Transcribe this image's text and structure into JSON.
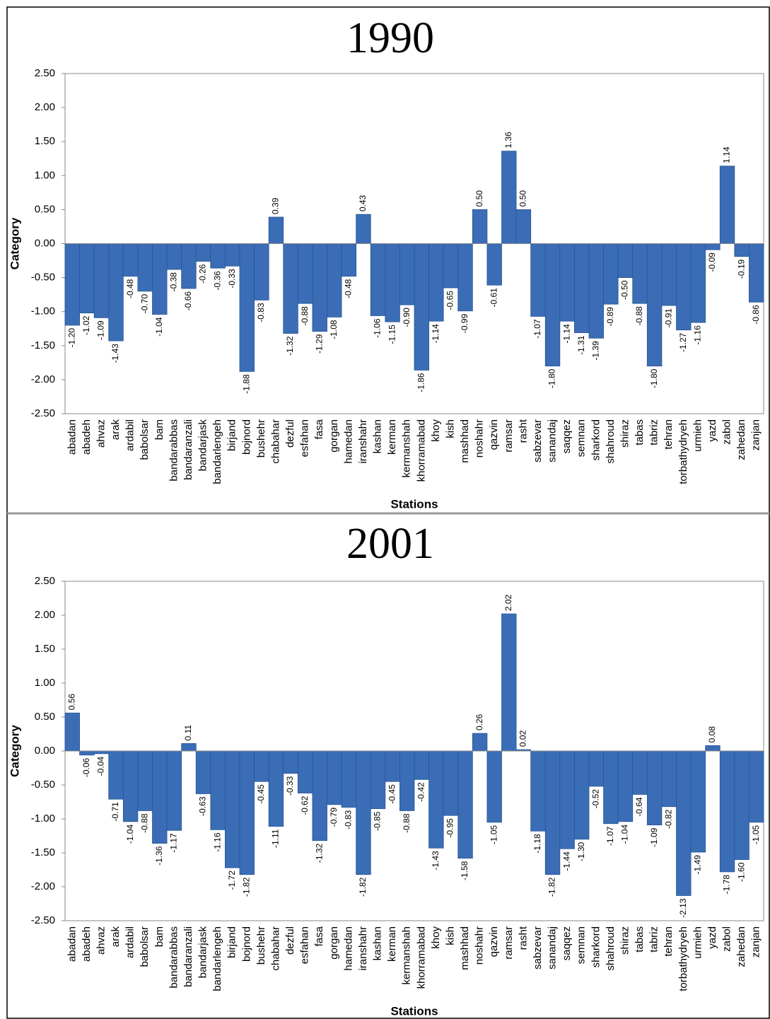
{
  "chart_data": [
    {
      "type": "bar",
      "title": "1990",
      "x_label": "Stations",
      "y_label": "Category",
      "color": "#3a6db5",
      "categories": [
        "abadan",
        "abadeh",
        "ahvaz",
        "arak",
        "ardabil",
        "babolsar",
        "bam",
        "bandarabbas",
        "bandaranzali",
        "bandarjask",
        "bandarlengeh",
        "birjand",
        "bojnord",
        "bushehr",
        "chabahar",
        "dezful",
        "esfahan",
        "fasa",
        "gorgan",
        "hamedan",
        "iranshahr",
        "kashan",
        "kerman",
        "kermanshah",
        "khorramabad",
        "khoy",
        "kish",
        "mashhad",
        "noshahr",
        "qazvin",
        "ramsar",
        "rasht",
        "sabzevar",
        "sanandaj",
        "saqqez",
        "semnan",
        "sharkord",
        "shahroud",
        "shiraz",
        "tabas",
        "tabriz",
        "tehran",
        "torbathydryeh",
        "urmieh",
        "yazd",
        "zabol",
        "zahedan",
        "zanjan"
      ],
      "values": [
        -1.2,
        -1.02,
        -1.09,
        -1.43,
        -0.48,
        -0.7,
        -1.04,
        -0.38,
        -0.66,
        -0.26,
        -0.36,
        -0.33,
        -1.88,
        -0.83,
        0.39,
        -1.32,
        -0.88,
        -1.29,
        -1.08,
        -0.48,
        0.43,
        -1.06,
        -1.15,
        -0.9,
        -1.86,
        -1.14,
        -0.65,
        -0.99,
        0.5,
        -0.61,
        1.36,
        0.5,
        -1.07,
        -1.8,
        -1.14,
        -1.31,
        -1.39,
        -0.89,
        -0.5,
        -0.88,
        -1.8,
        -0.91,
        -1.27,
        -1.16,
        -0.09,
        1.14,
        -0.19,
        -0.86
      ],
      "value_labels": [
        "-1.20",
        "-1.02",
        "-1.09",
        "-1.43",
        "-0.48",
        "-0.70",
        "-1.04",
        "-0.38",
        "-0.66",
        "-0.26",
        "-0.36",
        "-0.33",
        "-1.88",
        "-0.83",
        "0.39",
        "-1.32",
        "-0.88",
        "-1.29",
        "-1.08",
        "-0.48",
        "0.43",
        "-1.06",
        "-1.15",
        "-0.90",
        "-1.86",
        "-1.14",
        "-0.65",
        "-0.99",
        "0.50",
        "-0.61",
        "1.36",
        "0.50",
        "-1.07",
        "-1.80",
        "-1.14",
        "-1.31",
        "-1.39",
        "-0.89",
        "-0.50",
        "-0.88",
        "-1.80",
        "-0.91",
        "-1.27",
        "-1.16",
        "-0.09",
        "1.14",
        "-0.19",
        "-0.86"
      ],
      "ylim": [
        -2.5,
        2.5
      ],
      "yticks": [
        {
          "value": -2.5,
          "label": "-2.50"
        },
        {
          "value": -2,
          "label": "-2.00"
        },
        {
          "value": -1.5,
          "label": "-1.50"
        },
        {
          "value": -1,
          "label": "-1.00"
        },
        {
          "value": -0.5,
          "label": "-0.50"
        },
        {
          "value": 0,
          "label": "0.00"
        },
        {
          "value": 0.5,
          "label": "0.50"
        },
        {
          "value": 1,
          "label": "1.00"
        },
        {
          "value": 1.5,
          "label": "1.50"
        },
        {
          "value": 2,
          "label": "2.00"
        },
        {
          "value": 2.5,
          "label": "2.50"
        }
      ]
    },
    {
      "type": "bar",
      "title": "2001",
      "x_label": "Stations",
      "y_label": "Category",
      "color": "#3a6db5",
      "categories": [
        "abadan",
        "abadeh",
        "ahvaz",
        "arak",
        "ardabil",
        "babolsar",
        "bam",
        "bandarabbas",
        "bandaranzali",
        "bandarjask",
        "bandarlengeh",
        "birjand",
        "bojnord",
        "bushehr",
        "chabahar",
        "dezful",
        "esfahan",
        "fasa",
        "gorgan",
        "hamedan",
        "iranshahr",
        "kashan",
        "kerman",
        "kermanshah",
        "khorramabad",
        "khoy",
        "kish",
        "mashhad",
        "noshahr",
        "qazvin",
        "ramsar",
        "rasht",
        "sabzevar",
        "sanandaj",
        "saqqez",
        "semnan",
        "sharkord",
        "shahroud",
        "shiraz",
        "tabas",
        "tabriz",
        "tehran",
        "torbathydryeh",
        "urmieh",
        "yazd",
        "zabol",
        "zahedan",
        "zanjan"
      ],
      "values": [
        0.56,
        -0.06,
        -0.04,
        -0.71,
        -1.04,
        -0.88,
        -1.36,
        -1.17,
        0.11,
        -0.63,
        -1.16,
        -1.72,
        -1.82,
        -0.45,
        -1.11,
        -0.33,
        -0.62,
        -1.32,
        -0.79,
        -0.83,
        -1.82,
        -0.85,
        -0.45,
        -0.88,
        -0.42,
        -1.43,
        -0.95,
        -1.58,
        0.26,
        -1.05,
        2.02,
        0.02,
        -1.18,
        -1.82,
        -1.44,
        -1.3,
        -0.52,
        -1.07,
        -1.04,
        -0.64,
        -1.09,
        -0.82,
        -2.13,
        -1.49,
        0.08,
        -1.78,
        -1.6,
        -1.05
      ],
      "value_labels": [
        "0.56",
        "-0.06",
        "-0.04",
        "-0.71",
        "-1.04",
        "-0.88",
        "-1.36",
        "-1.17",
        "0.11",
        "-0.63",
        "-1.16",
        "-1.72",
        "-1.82",
        "-0.45",
        "-1.11",
        "-0.33",
        "-0.62",
        "-1.32",
        "-0.79",
        "-0.83",
        "-1.82",
        "-0.85",
        "-0.45",
        "-0.88",
        "-0.42",
        "-1.43",
        "-0.95",
        "-1.58",
        "0.26",
        "-1.05",
        "2.02",
        "0.02",
        "-1.18",
        "-1.82",
        "-1.44",
        "-1.30",
        "-0.52",
        "-1.07",
        "-1.04",
        "-0.64",
        "-1.09",
        "-0.82",
        "-2.13",
        "-1.49",
        "0.08",
        "-1.78",
        "-1.60",
        "-1.05"
      ],
      "ylim": [
        -2.5,
        2.5
      ],
      "yticks": [
        {
          "value": -2.5,
          "label": "-2.50"
        },
        {
          "value": -2,
          "label": "-2.00"
        },
        {
          "value": -1.5,
          "label": "-1.50"
        },
        {
          "value": -1,
          "label": "-1.00"
        },
        {
          "value": -0.5,
          "label": "-0.50"
        },
        {
          "value": 0,
          "label": "0.00"
        },
        {
          "value": 0.5,
          "label": "0.50"
        },
        {
          "value": 1,
          "label": "1.00"
        },
        {
          "value": 1.5,
          "label": "1.50"
        },
        {
          "value": 2,
          "label": "2.00"
        },
        {
          "value": 2.5,
          "label": "2.50"
        }
      ]
    }
  ]
}
